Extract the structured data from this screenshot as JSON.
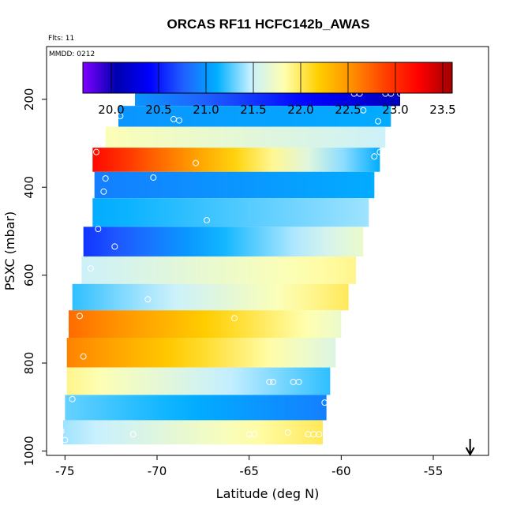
{
  "chart_data": {
    "type": "heatmap",
    "title": "ORCAS RF11 HCFC142b_AWAS",
    "annotations": [
      "Flts: 11",
      "MMDD: 0212"
    ],
    "xlabel": "Latitude (deg N)",
    "ylabel": "PSXC (mbar)",
    "xlim": [
      -76,
      -52
    ],
    "ylim": [
      1010,
      80
    ],
    "y_inverted": true,
    "x_ticks": [
      -75,
      -70,
      -65,
      -60,
      -55
    ],
    "y_ticks": [
      200,
      400,
      600,
      800,
      1000
    ],
    "colorbar": {
      "range": [
        19.7,
        23.6
      ],
      "ticks": [
        20.0,
        20.5,
        21.0,
        21.5,
        22.0,
        22.5,
        23.0,
        23.5
      ],
      "colors": [
        "#7f00ff",
        "#0000b0",
        "#0000ff",
        "#2060ff",
        "#00b0ff",
        "#c8f0ff",
        "#ffffb0",
        "#ffd000",
        "#ff9000",
        "#ff4000",
        "#ff0000",
        "#a00000"
      ]
    },
    "arrow_marker": {
      "x": -53,
      "direction": "down"
    },
    "rows": [
      {
        "p": 190,
        "lat_start": -71.2,
        "lat_end": -56.8,
        "left_value": 21.0,
        "right_value": 20.1
      },
      {
        "p": 240,
        "lat_start": -72.1,
        "lat_end": -57.3,
        "left_value": 21.0,
        "right_value": 21.1
      },
      {
        "p": 285,
        "lat_start": -72.8,
        "lat_end": -57.6,
        "left_value": 21.8,
        "right_value": 21.5
      },
      {
        "p": 335,
        "lat_start": -73.5,
        "lat_end": -57.9,
        "left_value": 23.2,
        "right_value": 21.1
      },
      {
        "p": 395,
        "lat_start": -73.4,
        "lat_end": -58.2,
        "left_value": 20.9,
        "right_value": 21.1
      },
      {
        "p": 455,
        "lat_start": -73.5,
        "lat_end": -58.5,
        "left_value": 21.1,
        "right_value": 21.4
      },
      {
        "p": 525,
        "lat_start": -74.0,
        "lat_end": -58.8,
        "left_value": 20.6,
        "right_value": 21.7
      },
      {
        "p": 590,
        "lat_start": -74.1,
        "lat_end": -59.2,
        "left_value": 21.5,
        "right_value": 21.9
      },
      {
        "p": 650,
        "lat_start": -74.6,
        "lat_end": -59.6,
        "left_value": 21.2,
        "right_value": 22.0
      },
      {
        "p": 710,
        "lat_start": -74.8,
        "lat_end": -60.0,
        "left_value": 22.7,
        "right_value": 21.7
      },
      {
        "p": 775,
        "lat_start": -74.9,
        "lat_end": -60.3,
        "left_value": 22.6,
        "right_value": 21.6
      },
      {
        "p": 845,
        "lat_start": -74.9,
        "lat_end": -60.6,
        "left_value": 21.9,
        "right_value": 21.2
      },
      {
        "p": 900,
        "lat_start": -75.0,
        "lat_end": -60.8,
        "left_value": 21.3,
        "right_value": 20.9
      },
      {
        "p": 960,
        "lat_start": -75.1,
        "lat_end": -61.0,
        "left_value": 21.4,
        "right_value": 22.0
      }
    ],
    "sample_points": [
      {
        "lat": -71.2,
        "p": 180
      },
      {
        "lat": -59.3,
        "p": 187
      },
      {
        "lat": -59.0,
        "p": 187
      },
      {
        "lat": -57.6,
        "p": 187
      },
      {
        "lat": -57.3,
        "p": 187
      },
      {
        "lat": -56.8,
        "p": 187
      },
      {
        "lat": -72.0,
        "p": 238
      },
      {
        "lat": -69.1,
        "p": 245
      },
      {
        "lat": -68.8,
        "p": 248
      },
      {
        "lat": -58.8,
        "p": 225
      },
      {
        "lat": -58.0,
        "p": 250
      },
      {
        "lat": -73.3,
        "p": 320
      },
      {
        "lat": -67.9,
        "p": 345
      },
      {
        "lat": -58.2,
        "p": 330
      },
      {
        "lat": -57.9,
        "p": 320
      },
      {
        "lat": -72.8,
        "p": 380
      },
      {
        "lat": -70.2,
        "p": 378
      },
      {
        "lat": -72.9,
        "p": 410
      },
      {
        "lat": -67.3,
        "p": 475
      },
      {
        "lat": -73.2,
        "p": 495
      },
      {
        "lat": -72.3,
        "p": 535
      },
      {
        "lat": -73.6,
        "p": 585
      },
      {
        "lat": -70.5,
        "p": 655
      },
      {
        "lat": -74.2,
        "p": 693
      },
      {
        "lat": -65.8,
        "p": 698
      },
      {
        "lat": -74.0,
        "p": 785
      },
      {
        "lat": -63.9,
        "p": 843
      },
      {
        "lat": -63.7,
        "p": 843
      },
      {
        "lat": -62.6,
        "p": 843
      },
      {
        "lat": -62.3,
        "p": 843
      },
      {
        "lat": -60.9,
        "p": 890
      },
      {
        "lat": -74.6,
        "p": 882
      },
      {
        "lat": -75.2,
        "p": 955
      },
      {
        "lat": -71.3,
        "p": 962
      },
      {
        "lat": -65.0,
        "p": 962
      },
      {
        "lat": -64.7,
        "p": 962
      },
      {
        "lat": -62.9,
        "p": 958
      },
      {
        "lat": -61.8,
        "p": 962
      },
      {
        "lat": -61.5,
        "p": 962
      },
      {
        "lat": -61.2,
        "p": 962
      },
      {
        "lat": -75.0,
        "p": 975
      }
    ]
  }
}
